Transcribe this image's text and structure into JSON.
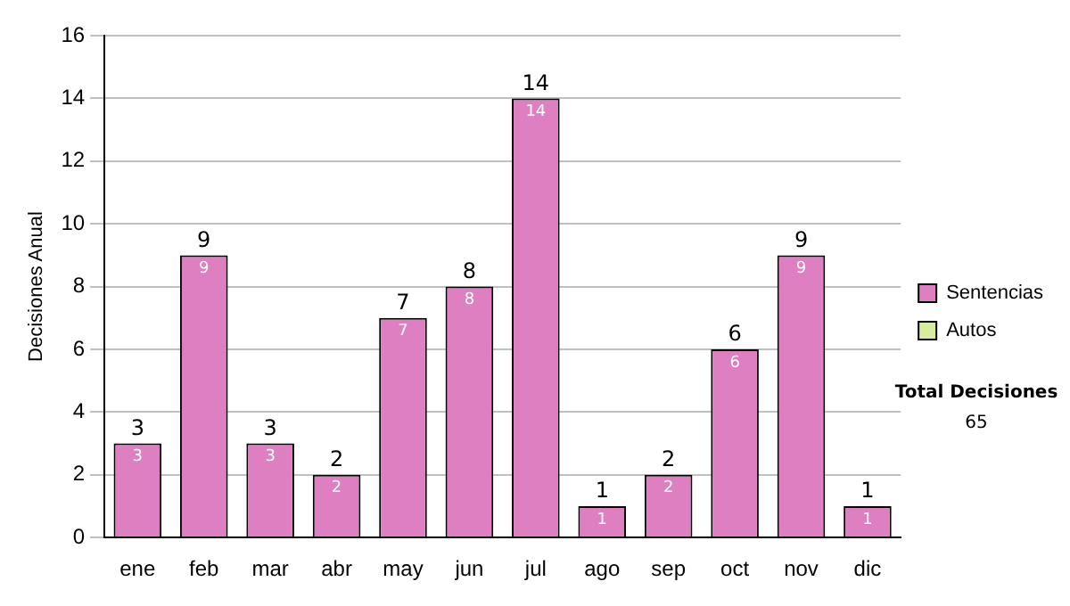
{
  "chart_data": {
    "type": "bar",
    "stacked": true,
    "ylabel": "Decisiones Anual",
    "categories": [
      "ene",
      "feb",
      "mar",
      "abr",
      "may",
      "jun",
      "jul",
      "ago",
      "sep",
      "oct",
      "nov",
      "dic"
    ],
    "series": [
      {
        "name": "Sentencias",
        "color": "#dd7fc0",
        "values": [
          3,
          9,
          3,
          2,
          7,
          8,
          14,
          1,
          2,
          6,
          9,
          1
        ],
        "value_labels": [
          "3",
          "9",
          "3",
          "2",
          "7",
          "8",
          "14",
          "1",
          "2",
          "6",
          "9",
          "1"
        ]
      },
      {
        "name": "Autos",
        "color": "#d8eca0",
        "values": [
          0,
          0,
          0,
          0,
          0,
          0,
          0,
          0,
          0,
          0,
          0,
          0
        ]
      }
    ],
    "totals": [
      "3",
      "9",
      "3",
      "2",
      "7",
      "8",
      "14",
      "1",
      "2",
      "6",
      "9",
      "1"
    ],
    "ylim": [
      0,
      16
    ],
    "yticks": [
      0,
      2,
      4,
      6,
      8,
      10,
      12,
      14,
      16
    ],
    "grid": "y",
    "legend": "right",
    "annotations": [
      "Total Decisiones",
      "65"
    ]
  }
}
